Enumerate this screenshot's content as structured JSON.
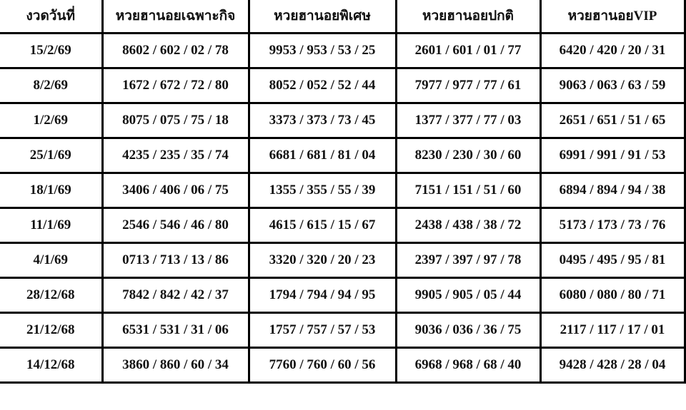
{
  "table": {
    "headers": [
      "งวดวันที่",
      "หวยฮานอยเฉพาะกิจ",
      "หวยฮานอยพิเศษ",
      "หวยฮานอยปกติ",
      "หวยฮานอยVIP"
    ],
    "rows": [
      [
        "15/2/69",
        "8602 / 602 / 02 / 78",
        "9953 / 953 / 53 / 25",
        "2601 / 601 / 01 / 77",
        "6420 / 420 / 20 / 31"
      ],
      [
        "8/2/69",
        "1672 / 672 / 72 / 80",
        "8052 / 052 / 52 / 44",
        "7977 / 977 / 77 / 61",
        "9063 / 063 / 63 / 59"
      ],
      [
        "1/2/69",
        "8075 / 075 / 75 / 18",
        "3373 / 373 / 73 / 45",
        "1377 / 377 / 77 / 03",
        "2651 / 651 / 51 / 65"
      ],
      [
        "25/1/69",
        "4235 / 235 / 35 / 74",
        "6681 / 681 / 81 / 04",
        "8230 / 230 / 30 / 60",
        "6991 / 991 / 91 / 53"
      ],
      [
        "18/1/69",
        "3406 / 406 / 06 / 75",
        "1355 / 355 / 55 / 39",
        "7151 / 151 / 51 / 60",
        "6894 / 894 / 94 / 38"
      ],
      [
        "11/1/69",
        "2546 / 546 / 46 / 80",
        "4615 / 615 / 15 / 67",
        "2438 / 438 / 38 / 72",
        "5173 / 173 / 73 / 76"
      ],
      [
        "4/1/69",
        "0713 / 713 / 13 / 86",
        "3320 / 320 / 20 / 23",
        "2397 / 397 / 97 / 78",
        "0495 / 495 / 95 / 81"
      ],
      [
        "28/12/68",
        "7842 / 842 / 42 / 37",
        "1794 / 794 / 94 / 95",
        "9905 / 905 / 05 / 44",
        "6080 / 080 / 80 / 71"
      ],
      [
        "21/12/68",
        "6531 / 531 / 31 / 06",
        "1757 / 757 / 57 / 53",
        "9036 / 036 / 36 / 75",
        "2117 / 117 / 17 / 01"
      ],
      [
        "14/12/68",
        "3860 / 860 / 60 / 34",
        "7760 / 760 / 60 / 56",
        "6968 / 968 / 68 / 40",
        "9428 / 428 / 28 / 04"
      ]
    ]
  }
}
